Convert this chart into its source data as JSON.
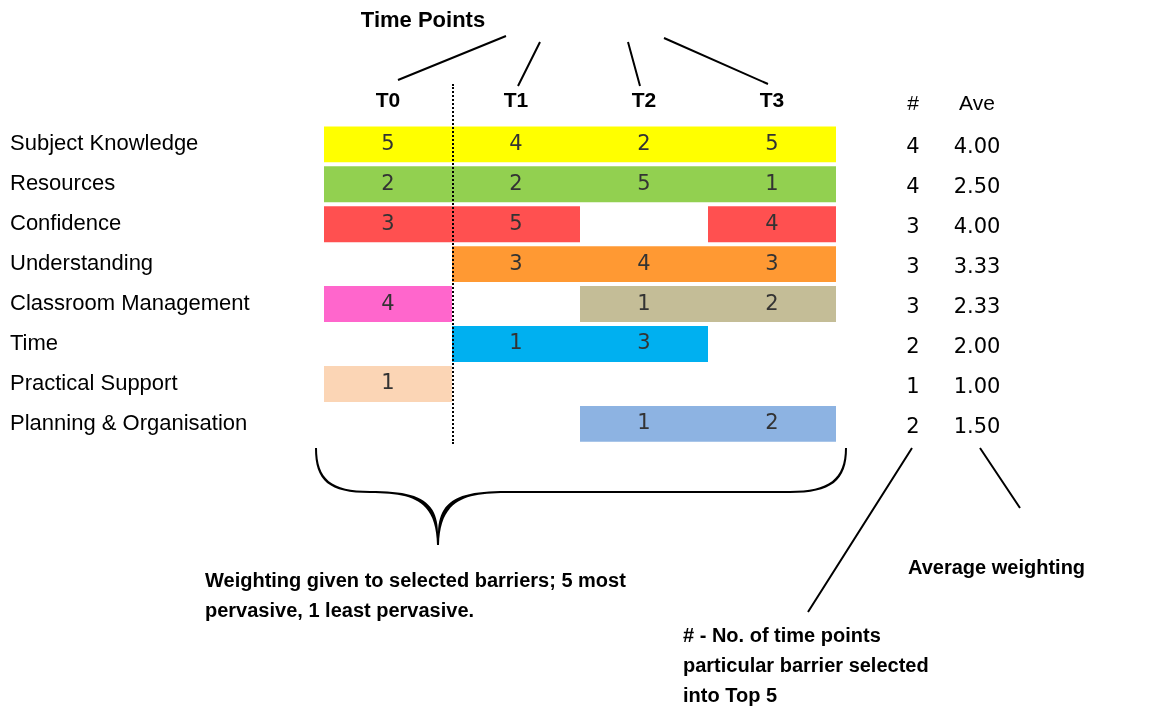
{
  "chart_data": [
    {
      "type": "heatmap",
      "title": "Time Points",
      "categories": [
        "T0",
        "T1",
        "T2",
        "T3"
      ],
      "y_categories": [
        "Subject Knowledge",
        "Resources",
        "Confidence",
        "Understanding",
        "Classroom Management",
        "Time",
        "Practical Support",
        "Planning & Organisation"
      ],
      "cells": [
        [
          5,
          4,
          2,
          5
        ],
        [
          2,
          2,
          5,
          1
        ],
        [
          3,
          5,
          null,
          4
        ],
        [
          null,
          3,
          4,
          3
        ],
        [
          4,
          null,
          1,
          2
        ],
        [
          null,
          1,
          3,
          null
        ],
        [
          1,
          null,
          null,
          null
        ],
        [
          null,
          null,
          1,
          2
        ]
      ],
      "data_labels": true,
      "colors": [
        [
          "#ffff00",
          "#ffff00",
          "#ffff00",
          "#ffff00"
        ],
        [
          "#92d050",
          "#92d050",
          "#92d050",
          "#92d050"
        ],
        [
          "#ff5050",
          "#ff5050",
          null,
          "#ff5050"
        ],
        [
          null,
          "#ff9933",
          "#ff9933",
          "#ff9933"
        ],
        [
          "#ff66cc",
          null,
          "#c4bd97",
          "#c4bd97"
        ],
        [
          null,
          "#00b0f0",
          "#00b0f0",
          null
        ],
        [
          "#fbd5b5",
          null,
          null,
          null
        ],
        [
          null,
          null,
          "#8db3e2",
          "#8db3e2"
        ]
      ],
      "annotations": [
        "Weighting given to selected barriers; 5 most pervasive, 1 least pervasive."
      ]
    },
    {
      "type": "heatmap",
      "categories": [
        "#",
        "Ave"
      ],
      "y_categories": [
        null,
        null,
        null,
        null,
        null,
        null,
        null,
        null
      ],
      "cells": [
        [
          4,
          4.0
        ],
        [
          4,
          2.5
        ],
        [
          3,
          4.0
        ],
        [
          3,
          3.33
        ],
        [
          3,
          2.33
        ],
        [
          2,
          2.0
        ],
        [
          1,
          1.0
        ],
        [
          2,
          1.5
        ]
      ],
      "cell_labels": [
        [
          "4",
          "4.00"
        ],
        [
          "4",
          "2.50"
        ],
        [
          "3",
          "4.00"
        ],
        [
          "3",
          "3.33"
        ],
        [
          "3",
          "2.33"
        ],
        [
          "2",
          "2.00"
        ],
        [
          "1",
          "1.00"
        ],
        [
          "2",
          "1.50"
        ]
      ],
      "tick_labels": "x",
      "annotations": [
        "# - No. of time points particular barrier selected into Top 5",
        "Average weighting"
      ]
    }
  ]
}
